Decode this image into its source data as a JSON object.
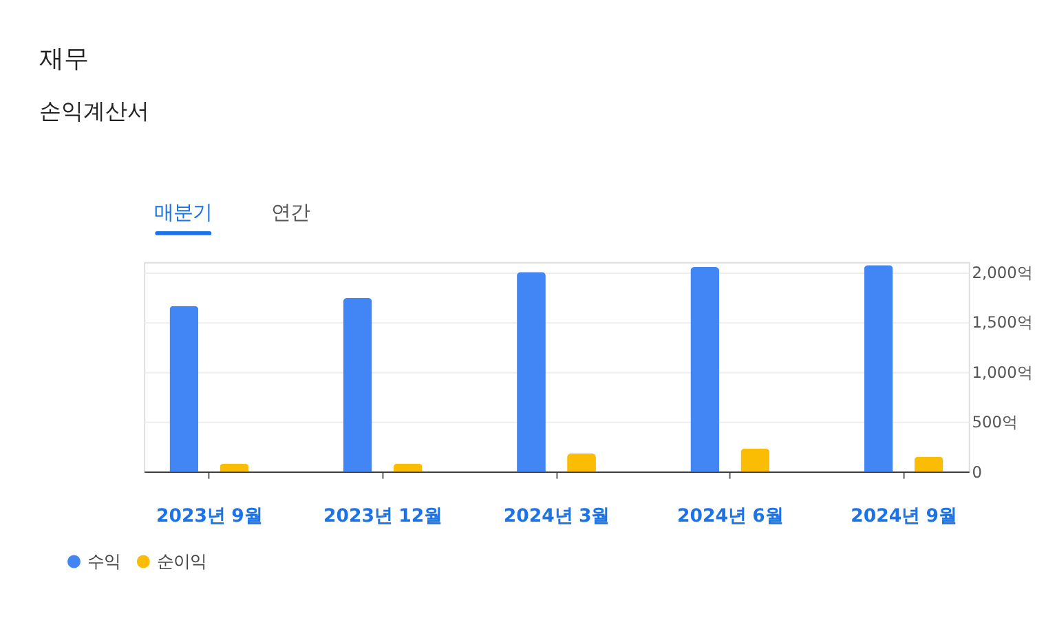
{
  "chart_data": {
    "type": "bar",
    "title": "재무",
    "subtitle": "손익계산서",
    "annotations": [
      "매분기",
      "연간"
    ],
    "categories": [
      "2023년 9월",
      "2023년 12월",
      "2024년 3월",
      "2024년 6월",
      "2024년 9월"
    ],
    "series": [
      {
        "name": "수익",
        "color": "#4285f4",
        "values": [
          1660,
          1740,
          2000,
          2050,
          2070
        ]
      },
      {
        "name": "순이익",
        "color": "#fbbc04",
        "values": [
          80,
          80,
          180,
          230,
          150
        ]
      }
    ],
    "ylim": [
      0,
      2100
    ],
    "yticks": [
      0,
      {
        "value": 500,
        "label": "500억"
      },
      {
        "value": 1000,
        "label": "1,000억"
      },
      {
        "value": 1500,
        "label": "1,500억"
      },
      {
        "value": 2000,
        "label": "2,000억"
      }
    ],
    "grid": "y",
    "legend": "bottom left"
  }
}
